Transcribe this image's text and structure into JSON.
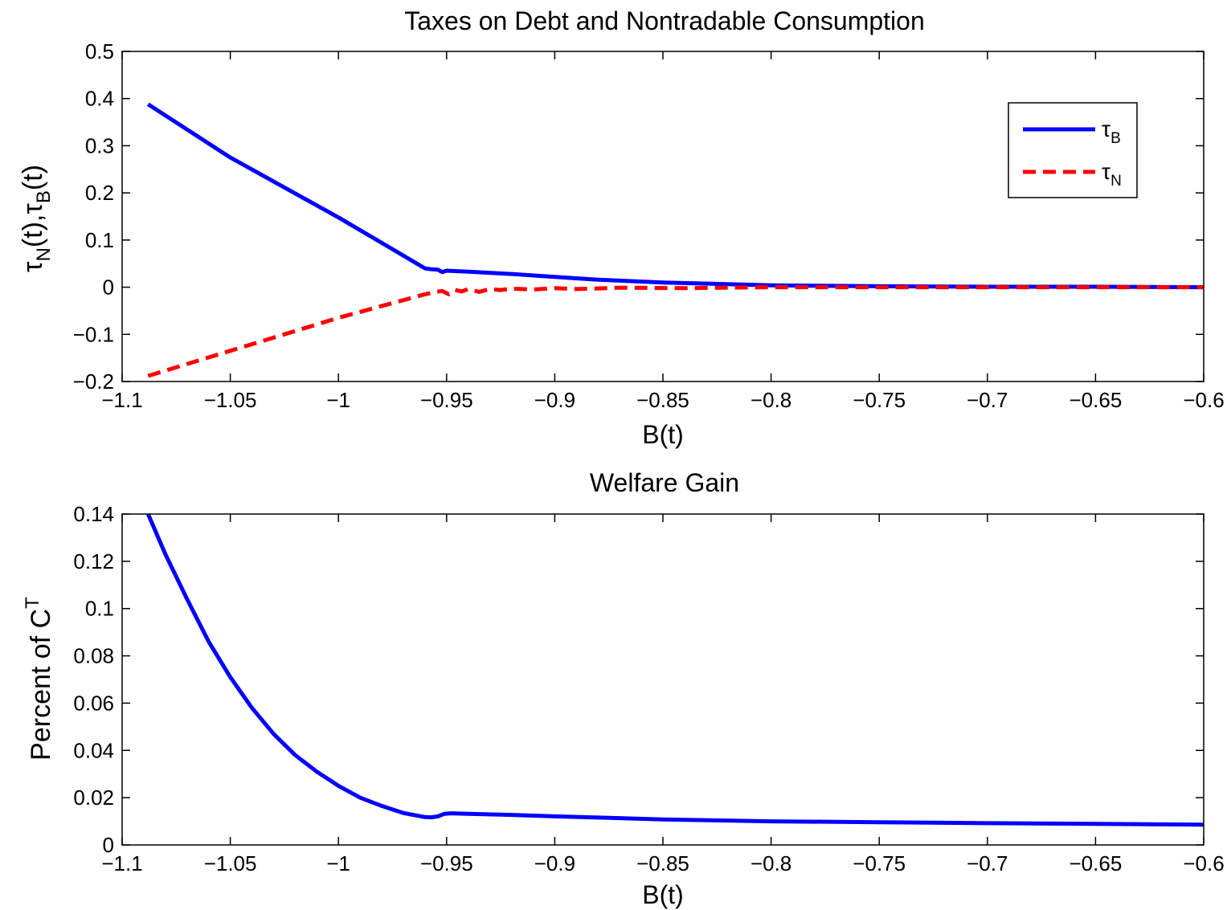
{
  "chart_data": [
    {
      "type": "line",
      "title": "Taxes on Debt and Nontradable Consumption",
      "xlabel": "B(t)",
      "ylabel": {
        "base": "τ",
        "sub1": "N",
        "mid": "(t),",
        "base2": "τ",
        "sub2": "B",
        "end": "(t)"
      },
      "xlim": [
        -1.1,
        -0.6
      ],
      "ylim": [
        -0.2,
        0.5
      ],
      "xticks": [
        -1.1,
        -1.05,
        -1,
        -0.95,
        -0.9,
        -0.85,
        -0.8,
        -0.75,
        -0.7,
        -0.65,
        -0.6
      ],
      "xtick_labels": [
        "−1.1",
        "−1.05",
        "−1",
        "−0.95",
        "−0.9",
        "−0.85",
        "−0.8",
        "−0.75",
        "−0.7",
        "−0.65",
        "−0.6"
      ],
      "yticks": [
        -0.2,
        -0.1,
        0,
        0.1,
        0.2,
        0.3,
        0.4,
        0.5
      ],
      "ytick_labels": [
        "−0.2",
        "−0.1",
        "0",
        "0.1",
        "0.2",
        "0.3",
        "0.4",
        "0.5"
      ],
      "grid": false,
      "legend_position": "top-right",
      "series": [
        {
          "name": "τ_B",
          "label_base": "τ",
          "label_sub": "B",
          "color": "#0000ff",
          "style": "solid",
          "x": [
            -1.088,
            -1.05,
            -1.0,
            -0.96,
            -0.957,
            -0.954,
            -0.952,
            -0.95,
            -0.94,
            -0.92,
            -0.9,
            -0.88,
            -0.85,
            -0.8,
            -0.75,
            -0.7,
            -0.65,
            -0.6
          ],
          "y": [
            0.388,
            0.275,
            0.148,
            0.04,
            0.038,
            0.037,
            0.032,
            0.035,
            0.033,
            0.028,
            0.022,
            0.016,
            0.01,
            0.004,
            0.002,
            0.001,
            0.001,
            0.0
          ]
        },
        {
          "name": "τ_N",
          "label_base": "τ",
          "label_sub": "N",
          "color": "#ff0000",
          "style": "dashed",
          "x": [
            -1.088,
            -1.05,
            -1.0,
            -0.96,
            -0.955,
            -0.952,
            -0.949,
            -0.946,
            -0.943,
            -0.94,
            -0.935,
            -0.93,
            -0.925,
            -0.92,
            -0.91,
            -0.9,
            -0.89,
            -0.87,
            -0.84,
            -0.8,
            -0.75,
            -0.7,
            -0.65,
            -0.6
          ],
          "y": [
            -0.188,
            -0.135,
            -0.065,
            -0.015,
            -0.01,
            -0.008,
            -0.015,
            -0.006,
            -0.009,
            -0.004,
            -0.01,
            -0.004,
            -0.006,
            -0.003,
            -0.005,
            -0.002,
            -0.004,
            -0.001,
            -0.002,
            0.0,
            0.0,
            0.0,
            0.0,
            0.0
          ]
        }
      ]
    },
    {
      "type": "line",
      "title": "Welfare Gain",
      "xlabel": "B(t)",
      "ylabel": {
        "text": "Percent of C",
        "sup": "T"
      },
      "xlim": [
        -1.1,
        -0.6
      ],
      "ylim": [
        0,
        0.14
      ],
      "xticks": [
        -1.1,
        -1.05,
        -1,
        -0.95,
        -0.9,
        -0.85,
        -0.8,
        -0.75,
        -0.7,
        -0.65,
        -0.6
      ],
      "xtick_labels": [
        "−1.1",
        "−1.05",
        "−1",
        "−0.95",
        "−0.9",
        "−0.85",
        "−0.8",
        "−0.75",
        "−0.7",
        "−0.65",
        "−0.6"
      ],
      "yticks": [
        0,
        0.02,
        0.04,
        0.06,
        0.08,
        0.1,
        0.12,
        0.14
      ],
      "ytick_labels": [
        "0",
        "0.02",
        "0.04",
        "0.06",
        "0.08",
        "0.1",
        "0.12",
        "0.14"
      ],
      "grid": false,
      "series": [
        {
          "color": "#0000ff",
          "style": "solid",
          "x": [
            -1.088,
            -1.08,
            -1.07,
            -1.06,
            -1.05,
            -1.04,
            -1.03,
            -1.02,
            -1.01,
            -1.0,
            -0.99,
            -0.98,
            -0.97,
            -0.96,
            -0.957,
            -0.954,
            -0.951,
            -0.948,
            -0.94,
            -0.92,
            -0.9,
            -0.88,
            -0.85,
            -0.8,
            -0.75,
            -0.7,
            -0.65,
            -0.6
          ],
          "y": [
            0.14,
            0.123,
            0.104,
            0.086,
            0.071,
            0.058,
            0.047,
            0.038,
            0.031,
            0.025,
            0.02,
            0.0165,
            0.0135,
            0.0118,
            0.0117,
            0.0121,
            0.0132,
            0.0134,
            0.0132,
            0.0127,
            0.0121,
            0.0116,
            0.0108,
            0.01,
            0.0096,
            0.0092,
            0.0089,
            0.0086
          ]
        }
      ]
    }
  ]
}
